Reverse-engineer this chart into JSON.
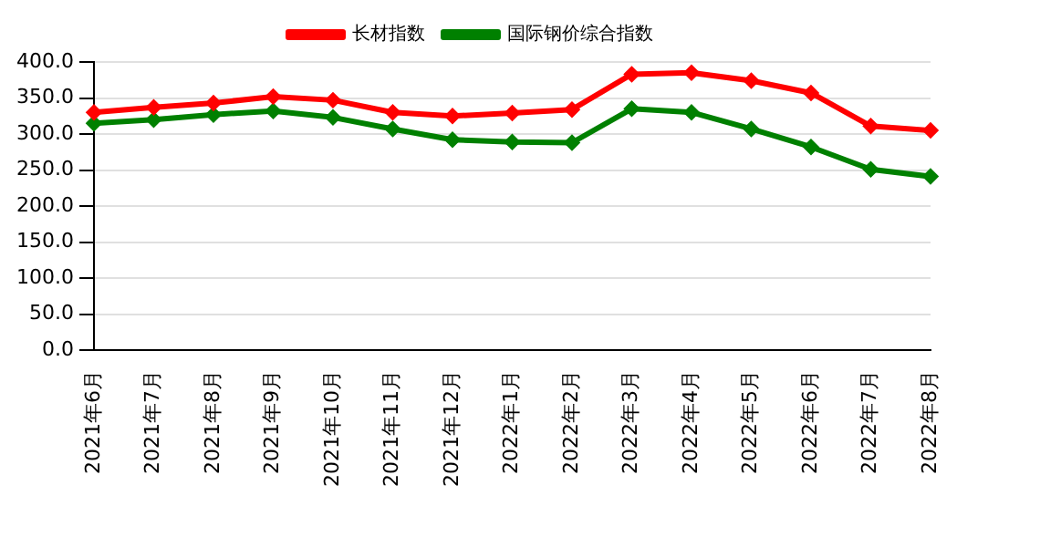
{
  "chart_data": {
    "type": "line",
    "categories": [
      "2021年6月",
      "2021年7月",
      "2021年8月",
      "2021年9月",
      "2021年10月",
      "2021年11月",
      "2021年12月",
      "2022年1月",
      "2022年2月",
      "2022年3月",
      "2022年4月",
      "2022年5月",
      "2022年6月",
      "2022年7月",
      "2022年8月"
    ],
    "series": [
      {
        "name": "长材指数",
        "color": "#ff0000",
        "values": [
          330,
          337,
          343,
          352,
          347,
          330,
          325,
          329,
          334,
          383,
          385,
          374,
          357,
          311,
          305
        ]
      },
      {
        "name": "国际钢价综合指数",
        "color": "#008000",
        "values": [
          315,
          320,
          327,
          332,
          323,
          307,
          292,
          289,
          288,
          335,
          330,
          307,
          282,
          251,
          241
        ]
      }
    ],
    "ylim": [
      0,
      400
    ],
    "yticks": [
      {
        "value": 0,
        "label": "0.0"
      },
      {
        "value": 50,
        "label": "50.0"
      },
      {
        "value": 100,
        "label": "100.0"
      },
      {
        "value": 150,
        "label": "150.0"
      },
      {
        "value": 200,
        "label": "200.0"
      },
      {
        "value": 250,
        "label": "250.0"
      },
      {
        "value": 300,
        "label": "300.0"
      },
      {
        "value": 350,
        "label": "350.0"
      },
      {
        "value": 400,
        "label": "400.0"
      }
    ],
    "grid": "y",
    "legend": "top",
    "marker": "diamond",
    "line_style": "solid"
  }
}
